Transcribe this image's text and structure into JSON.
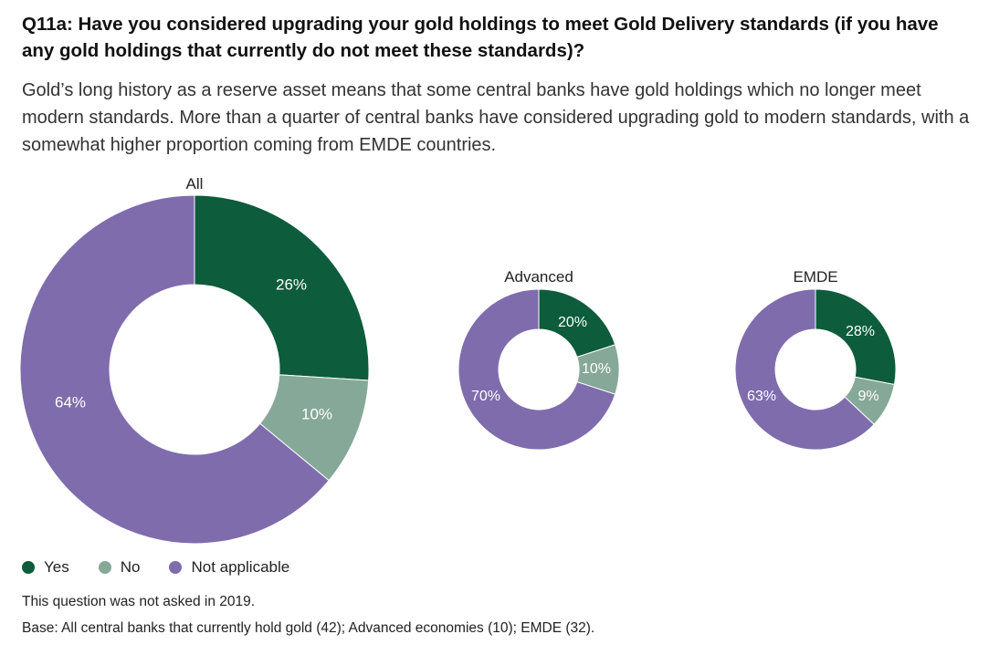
{
  "title": "Q11a: Have you considered upgrading your gold holdings to meet Gold Delivery standards (if you have any gold holdings that currently do not meet these standards)?",
  "subtitle": "Gold’s long history as a reserve asset means that some central banks have gold holdings which no longer meet modern standards. More than a quarter of central banks have considered upgrading gold to modern standards, with a somewhat higher proportion coming from EMDE countries.",
  "colors": {
    "yes": "#0d5c3c",
    "no": "#86a898",
    "not_applicable": "#7f6cad"
  },
  "legend": [
    {
      "label": "Yes",
      "color": "#0d5c3c"
    },
    {
      "label": "No",
      "color": "#86a898"
    },
    {
      "label": "Not applicable",
      "color": "#7f6cad"
    }
  ],
  "notes": {
    "line1": "This question was not asked in 2019.",
    "line2": "Base: All central banks that currently hold gold (42); Advanced economies (10); EMDE (32)."
  },
  "chart_data": [
    {
      "type": "pie",
      "title": "All",
      "categories": [
        "Yes",
        "No",
        "Not applicable"
      ],
      "values": [
        26,
        10,
        64
      ],
      "labels": [
        "26%",
        "10%",
        "64%"
      ]
    },
    {
      "type": "pie",
      "title": "Advanced",
      "categories": [
        "Yes",
        "No",
        "Not applicable"
      ],
      "values": [
        20,
        10,
        70
      ],
      "labels": [
        "20%",
        "10%",
        "70%"
      ]
    },
    {
      "type": "pie",
      "title": "EMDE",
      "categories": [
        "Yes",
        "No",
        "Not applicable"
      ],
      "values": [
        28,
        9,
        63
      ],
      "labels": [
        "28%",
        "9%",
        "63%"
      ]
    }
  ]
}
